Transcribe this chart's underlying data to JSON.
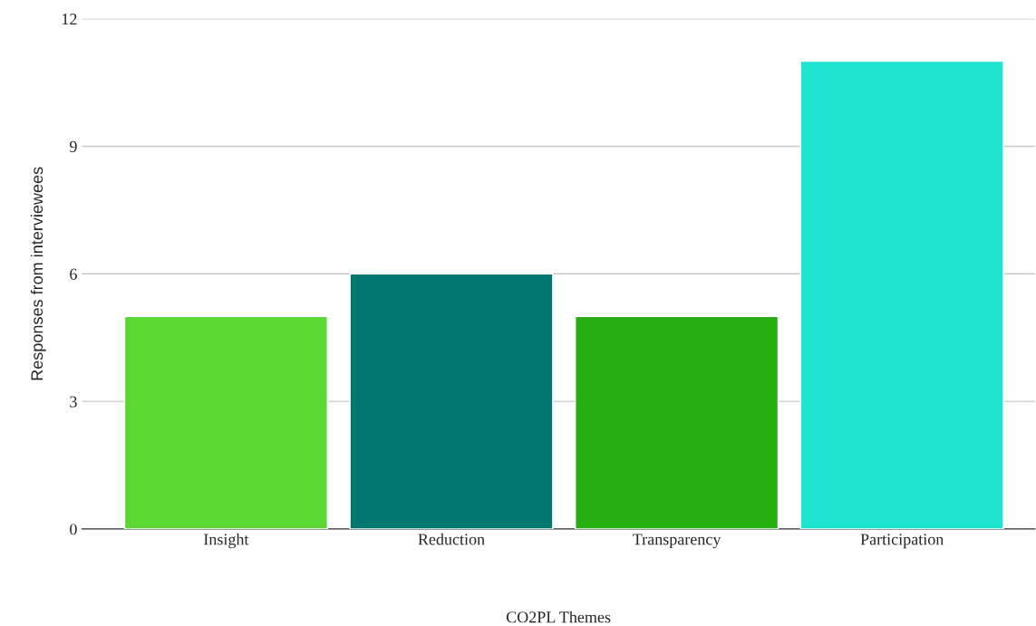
{
  "chart_data": {
    "type": "bar",
    "xlabel": "CO2PL Themes",
    "ylabel": "Responses from interviewees",
    "categories": [
      "Insight",
      "Reduction",
      "Transparency",
      "Participation"
    ],
    "values": [
      5,
      6,
      5,
      11
    ],
    "colors": [
      "#5cd633",
      "#00776f",
      "#27ae10",
      "#1de5d1"
    ],
    "ylim": [
      0,
      12
    ],
    "yticks": [
      0,
      3,
      6,
      9,
      12
    ],
    "grid": "y",
    "legend": false
  }
}
